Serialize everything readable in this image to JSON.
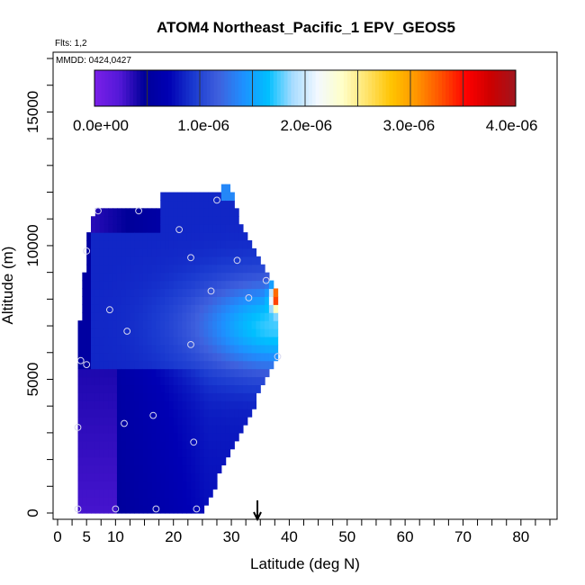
{
  "chart_data": {
    "type": "heatmap",
    "title": "ATOM4 Northeast_Pacific_1 EPV_GEOS5",
    "flights_note": "Flts: 1,2",
    "dates_note": "MMDD: 0424,0427",
    "xlabel": "Latitude (deg N)",
    "ylabel": "Altitude (m)",
    "xlim": [
      0,
      85
    ],
    "ylim": [
      0,
      17000
    ],
    "xticks": [
      0,
      5,
      10,
      20,
      30,
      40,
      50,
      60,
      70,
      80
    ],
    "xtick_labels": [
      "0",
      "5",
      "10",
      "20",
      "30",
      "40",
      "50",
      "60",
      "70",
      "80"
    ],
    "yticks": [
      0,
      5000,
      10000,
      15000
    ],
    "ytick_labels": [
      "0",
      "5000",
      "10000",
      "15000"
    ],
    "colorbar": {
      "min": 0,
      "max": 4.1e-06,
      "ticks": [
        0,
        1e-06,
        2e-06,
        3e-06,
        4e-06
      ],
      "tick_labels": [
        "0.0e+00",
        "1.0e-06",
        "2.0e-06",
        "3.0e-06",
        "4.0e-06"
      ],
      "colors": [
        "#7a1fe8",
        "#5418d8",
        "#000099",
        "#0000b4",
        "#1a3ad0",
        "#3f60dd",
        "#1e90ff",
        "#00bfff",
        "#a8dcff",
        "#f2f8ff",
        "#ffffc8",
        "#ffe36a",
        "#ffc300",
        "#ff9500",
        "#ff5000",
        "#ff0000",
        "#cc0000",
        "#a0161e"
      ]
    },
    "marker_latitude": 34.5,
    "observations": [
      {
        "lat": 7,
        "alt": 11300
      },
      {
        "lat": 14,
        "alt": 11300
      },
      {
        "lat": 27.5,
        "alt": 11700
      },
      {
        "lat": 21,
        "alt": 10600
      },
      {
        "lat": 5,
        "alt": 9800
      },
      {
        "lat": 23,
        "alt": 9550
      },
      {
        "lat": 31,
        "alt": 9450
      },
      {
        "lat": 36,
        "alt": 8700
      },
      {
        "lat": 26.5,
        "alt": 8300
      },
      {
        "lat": 33,
        "alt": 8050
      },
      {
        "lat": 9,
        "alt": 7600
      },
      {
        "lat": 12,
        "alt": 6800
      },
      {
        "lat": 23,
        "alt": 6300
      },
      {
        "lat": 38,
        "alt": 5850
      },
      {
        "lat": 4,
        "alt": 5700
      },
      {
        "lat": 5,
        "alt": 5550
      },
      {
        "lat": 16.5,
        "alt": 3650
      },
      {
        "lat": 11.5,
        "alt": 3350
      },
      {
        "lat": 3.5,
        "alt": 3200
      },
      {
        "lat": 23.5,
        "alt": 2650
      },
      {
        "lat": 3.5,
        "alt": 150
      },
      {
        "lat": 10,
        "alt": 150
      },
      {
        "lat": 17,
        "alt": 150
      },
      {
        "lat": 24,
        "alt": 150
      }
    ]
  }
}
